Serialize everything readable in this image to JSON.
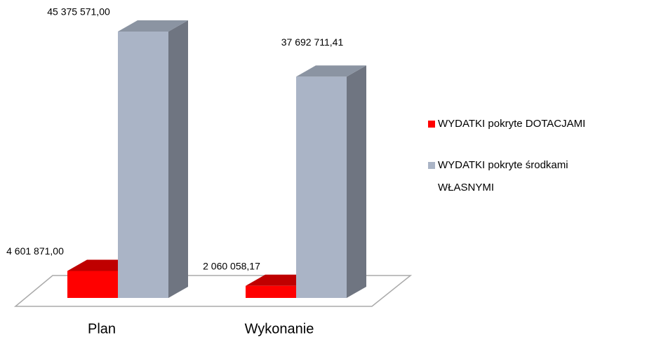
{
  "chart_data": {
    "type": "bar3d",
    "categories": [
      "Plan",
      "Wykonanie"
    ],
    "series": [
      {
        "name": "WYDATKI pokryte DOTACJAMI",
        "color": "#ff0000",
        "values": [
          4601871.0,
          2060058.17
        ],
        "value_labels": [
          "4 601 871,00",
          "2 060 058,17"
        ]
      },
      {
        "name": "WYDATKI pokryte środkami WŁASNYMI",
        "color": "#aab4c6",
        "values": [
          45375571.0,
          37692711.41
        ],
        "value_labels": [
          "45 375 571,00",
          "37 692 711,41"
        ]
      }
    ],
    "legend": "right"
  }
}
